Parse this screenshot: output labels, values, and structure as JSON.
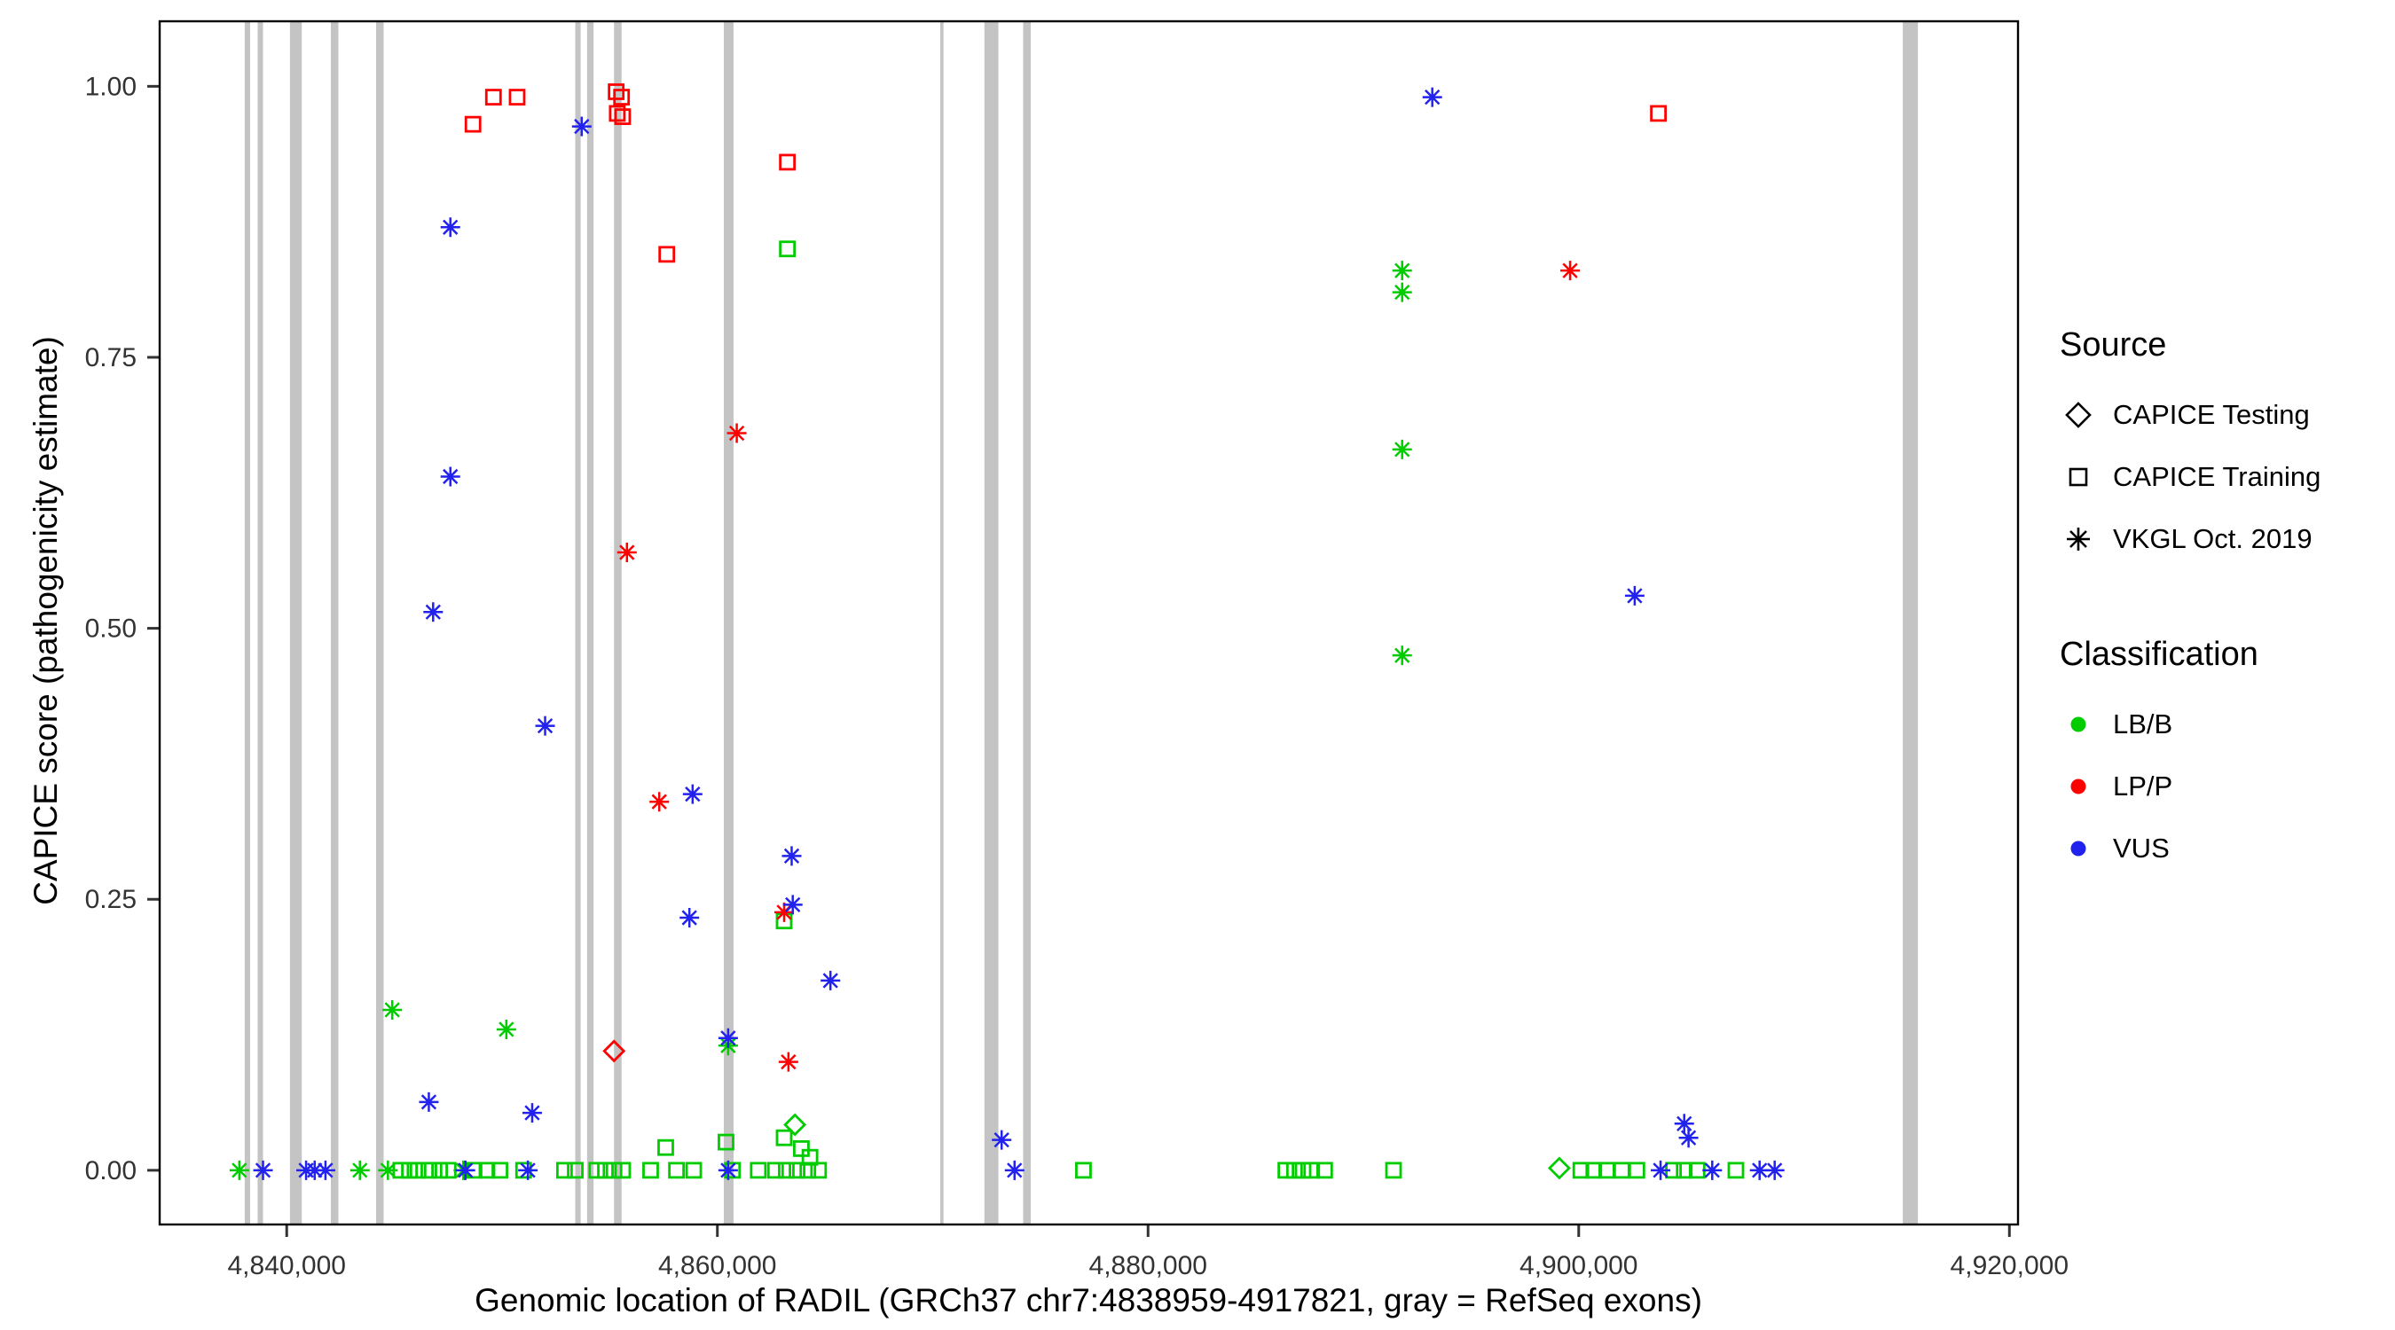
{
  "figure": {
    "x_axis_title": "Genomic location of RADIL (GRCh37 chr7:4838959-4917821, gray = RefSeq exons)",
    "y_axis_title": "CAPICE score (pathogenicity estimate)"
  },
  "legend": {
    "source": {
      "title": "Source",
      "items": [
        {
          "label": "CAPICE Testing",
          "shape": "diamond"
        },
        {
          "label": "CAPICE Training",
          "shape": "square"
        },
        {
          "label": "VKGL Oct. 2019",
          "shape": "asterisk"
        }
      ]
    },
    "classification": {
      "title": "Classification",
      "items": [
        {
          "label": "LB/B",
          "color": "#00CC00"
        },
        {
          "label": "LP/P",
          "color": "#FF0000"
        },
        {
          "label": "VUS",
          "color": "#2222EE"
        }
      ]
    }
  },
  "chart_data": {
    "type": "scatter",
    "title": "",
    "xlabel": "Genomic location of RADIL (GRCh37 chr7:4838959-4917821, gray = RefSeq exons)",
    "ylabel": "CAPICE score (pathogenicity estimate)",
    "xlim": [
      4834100,
      4920400
    ],
    "ylim": [
      -0.05,
      1.06
    ],
    "grid": false,
    "legend_position": "right",
    "x_ticks": [
      {
        "value": 4840000,
        "label": "4,840,000"
      },
      {
        "value": 4860000,
        "label": "4,860,000"
      },
      {
        "value": 4880000,
        "label": "4,880,000"
      },
      {
        "value": 4900000,
        "label": "4,900,000"
      },
      {
        "value": 4920000,
        "label": "4,920,000"
      }
    ],
    "y_ticks": [
      {
        "value": 0.0,
        "label": "0.00"
      },
      {
        "value": 0.25,
        "label": "0.25"
      },
      {
        "value": 0.5,
        "label": "0.50"
      },
      {
        "value": 0.75,
        "label": "0.75"
      },
      {
        "value": 1.0,
        "label": "1.00"
      }
    ],
    "exon_color": "#C4C4C4",
    "colors": {
      "LB/B": "#00CC00",
      "LP/P": "#FF0000",
      "VUS": "#2222EE"
    },
    "exons": [
      [
        4838050,
        4838300
      ],
      [
        4838650,
        4838900
      ],
      [
        4840150,
        4840700
      ],
      [
        4842050,
        4842400
      ],
      [
        4844150,
        4844500
      ],
      [
        4853400,
        4853650
      ],
      [
        4853950,
        4854250
      ],
      [
        4855200,
        4855550
      ],
      [
        4860300,
        4860750
      ],
      [
        4870350,
        4870500
      ],
      [
        4872400,
        4873050
      ],
      [
        4874200,
        4874550
      ],
      [
        4915050,
        4915750
      ]
    ],
    "series": [
      {
        "name": "CAPICE Testing / LP-P",
        "source": "CAPICE Testing",
        "classification": "LP/P",
        "shape": "diamond",
        "points": [
          [
            4855200,
            0.11
          ]
        ]
      },
      {
        "name": "CAPICE Testing / LB-B",
        "source": "CAPICE Testing",
        "classification": "LB/B",
        "shape": "diamond",
        "points": [
          [
            4863600,
            0.042
          ],
          [
            4899100,
            0.002
          ]
        ]
      },
      {
        "name": "CAPICE Training / LP-P",
        "source": "CAPICE Training",
        "classification": "LP/P",
        "shape": "square",
        "points": [
          [
            4848650,
            0.965
          ],
          [
            4849600,
            0.99
          ],
          [
            4850700,
            0.99
          ],
          [
            4855300,
            0.995
          ],
          [
            4855550,
            0.99
          ],
          [
            4855350,
            0.975
          ],
          [
            4855600,
            0.972
          ],
          [
            4863250,
            0.93
          ],
          [
            4857650,
            0.845
          ],
          [
            4903700,
            0.975
          ]
        ]
      },
      {
        "name": "CAPICE Training / LB-B",
        "source": "CAPICE Training",
        "classification": "LB/B",
        "shape": "square",
        "points": [
          [
            4863250,
            0.85
          ],
          [
            4863100,
            0.23
          ],
          [
            4857600,
            0.021
          ],
          [
            4860400,
            0.026
          ],
          [
            4863100,
            0.03
          ],
          [
            4863900,
            0.02
          ],
          [
            4864300,
            0.012
          ],
          [
            4845300,
            0
          ],
          [
            4845700,
            0
          ],
          [
            4846100,
            0
          ],
          [
            4846600,
            0
          ],
          [
            4847100,
            0
          ],
          [
            4847500,
            0
          ],
          [
            4848700,
            0
          ],
          [
            4849300,
            0
          ],
          [
            4849900,
            0
          ],
          [
            4851000,
            0
          ],
          [
            4852900,
            0
          ],
          [
            4853400,
            0
          ],
          [
            4854400,
            0
          ],
          [
            4854800,
            0
          ],
          [
            4855200,
            0
          ],
          [
            4855600,
            0
          ],
          [
            4856900,
            0
          ],
          [
            4858100,
            0
          ],
          [
            4858900,
            0
          ],
          [
            4860700,
            0
          ],
          [
            4861900,
            0
          ],
          [
            4862700,
            0
          ],
          [
            4863200,
            0
          ],
          [
            4863700,
            0
          ],
          [
            4864200,
            0
          ],
          [
            4864700,
            0
          ],
          [
            4877000,
            0
          ],
          [
            4886400,
            0
          ],
          [
            4886800,
            0
          ],
          [
            4887200,
            0
          ],
          [
            4887600,
            0
          ],
          [
            4888200,
            0
          ],
          [
            4891400,
            0
          ],
          [
            4900100,
            0
          ],
          [
            4900700,
            0
          ],
          [
            4901300,
            0
          ],
          [
            4902000,
            0
          ],
          [
            4902700,
            0
          ],
          [
            4904400,
            0
          ],
          [
            4904900,
            0
          ],
          [
            4905500,
            0
          ],
          [
            4907300,
            0
          ]
        ]
      },
      {
        "name": "VKGL / LP-P",
        "source": "VKGL Oct. 2019",
        "classification": "LP/P",
        "shape": "asterisk",
        "points": [
          [
            4899600,
            0.83
          ],
          [
            4860900,
            0.68
          ],
          [
            4855800,
            0.57
          ],
          [
            4857300,
            0.34
          ],
          [
            4863100,
            0.238
          ],
          [
            4863300,
            0.1
          ]
        ]
      },
      {
        "name": "VKGL / LB-B",
        "source": "VKGL Oct. 2019",
        "classification": "LB/B",
        "shape": "asterisk",
        "points": [
          [
            4891800,
            0.83
          ],
          [
            4891800,
            0.81
          ],
          [
            4891800,
            0.665
          ],
          [
            4891800,
            0.475
          ],
          [
            4844900,
            0.148
          ],
          [
            4850200,
            0.13
          ],
          [
            4860500,
            0.115
          ],
          [
            4837800,
            0
          ],
          [
            4843400,
            0
          ],
          [
            4844700,
            0
          ],
          [
            4848200,
            0
          ]
        ]
      },
      {
        "name": "VKGL / VUS",
        "source": "VKGL Oct. 2019",
        "classification": "VUS",
        "shape": "asterisk",
        "points": [
          [
            4893200,
            0.99
          ],
          [
            4853700,
            0.963
          ],
          [
            4847600,
            0.87
          ],
          [
            4847600,
            0.64
          ],
          [
            4902600,
            0.53
          ],
          [
            4846800,
            0.515
          ],
          [
            4852000,
            0.41
          ],
          [
            4858850,
            0.347
          ],
          [
            4863450,
            0.29
          ],
          [
            4863500,
            0.245
          ],
          [
            4858700,
            0.233
          ],
          [
            4865250,
            0.175
          ],
          [
            4860500,
            0.122
          ],
          [
            4846600,
            0.063
          ],
          [
            4851400,
            0.053
          ],
          [
            4904900,
            0.043
          ],
          [
            4905100,
            0.03
          ],
          [
            4873200,
            0.028
          ],
          [
            4838900,
            0
          ],
          [
            4840900,
            0
          ],
          [
            4841300,
            0
          ],
          [
            4841800,
            0
          ],
          [
            4848300,
            0
          ],
          [
            4851200,
            0
          ],
          [
            4860500,
            0
          ],
          [
            4873800,
            0
          ],
          [
            4903800,
            0
          ],
          [
            4906200,
            0
          ],
          [
            4908400,
            0
          ],
          [
            4909100,
            0
          ]
        ]
      }
    ]
  }
}
